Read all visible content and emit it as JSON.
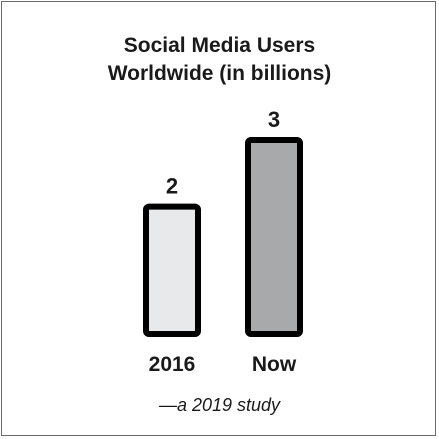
{
  "chart_data": {
    "type": "bar",
    "title_lines": [
      "Social Media Users",
      "Worldwide (in billions)"
    ],
    "categories": [
      "2016",
      "Now"
    ],
    "values": [
      2,
      3
    ],
    "value_labels": [
      "2",
      "3"
    ],
    "colors": [
      "#e8e9ea",
      "#a7a9ab"
    ],
    "ylim": [
      0,
      3
    ],
    "grid": false,
    "legend": "none",
    "source": "—a 2019 study"
  }
}
